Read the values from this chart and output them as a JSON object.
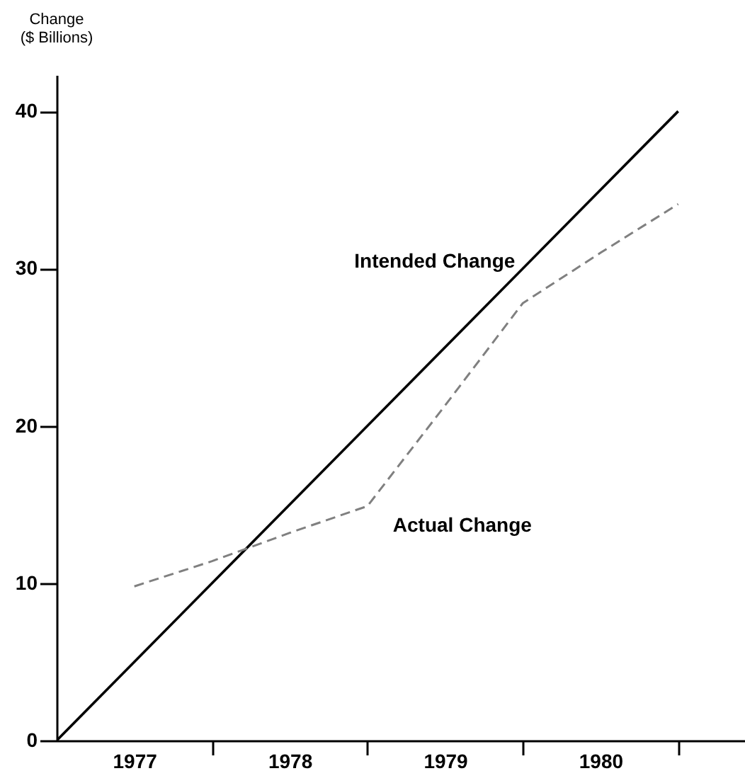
{
  "chart_data": {
    "type": "line",
    "ylabel": "Change\n($ Billions)",
    "series": [
      {
        "color": "#000000",
        "line_style": "solid",
        "x": [
          1976.5,
          1980.5
        ],
        "values": [
          0,
          40
        ]
      },
      {
        "color": "#808080",
        "line_style": "dashed",
        "x": [
          1977.0,
          1977.5,
          1978.0,
          1978.5,
          1979.0,
          1979.5,
          1980.0,
          1980.5
        ],
        "values": [
          9.8,
          11.4,
          13.2,
          14.9,
          21.3,
          27.8,
          31.0,
          34.1
        ]
      }
    ],
    "annotations": [
      {
        "text": "Intended Change",
        "x": 1979.56,
        "y": 30.6
      },
      {
        "text": "Actual Change",
        "x": 1978.5,
        "y": 14.9
      }
    ],
    "xlim": [
      1976.5,
      1980.93
    ],
    "xticks": [
      1977,
      1978,
      1979,
      1980,
      {
        "value": 1977.5,
        "label": null
      },
      {
        "value": 1978.5,
        "label": null
      },
      {
        "value": 1979.5,
        "label": null
      },
      {
        "value": 1980.5,
        "label": null
      }
    ],
    "ylim": [
      0,
      42.3
    ],
    "yticks": [
      0,
      10,
      20,
      30,
      40
    ],
    "grid": false,
    "marker": "none"
  }
}
